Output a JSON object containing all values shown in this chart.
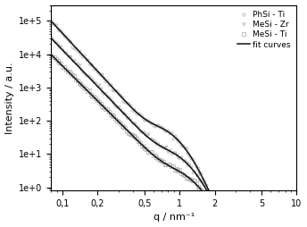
{
  "title": "",
  "xlabel": "q / nm⁻¹",
  "ylabel": "Intensity / a.u.",
  "xmin": 0.08,
  "xmax": 10,
  "ymin": 0.8,
  "ymax": 300000.0,
  "legend_entries": [
    "PhSi - Ti",
    "MeSi - Zr",
    "MeSi - Ti",
    "fit curves"
  ],
  "scatter_color": "#aaaaaa",
  "fit_color": "#111111",
  "background_color": "#ffffff",
  "xticks": [
    0.1,
    0.2,
    0.5,
    1,
    2,
    5,
    10
  ],
  "xtick_labels": [
    "0,1",
    "0,2",
    "0,5",
    "1",
    "2",
    "5",
    "10"
  ],
  "yticks": [
    1,
    10,
    100,
    1000,
    10000,
    100000
  ]
}
